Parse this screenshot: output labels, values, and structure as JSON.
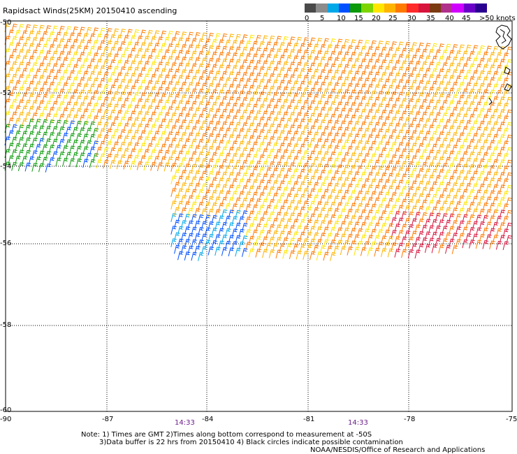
{
  "title": "Rapidsact Winds(25KM) 20150410 ascending",
  "colorbar": {
    "units": ">50 knots",
    "labels": [
      "0",
      "5",
      "10",
      "15",
      "20",
      "25",
      "30",
      "35",
      "40",
      "45"
    ],
    "colors": [
      "#4a4a4a",
      "#8c8c8c",
      "#00a8e8",
      "#0050ff",
      "#0a9a0a",
      "#7cd400",
      "#ffe600",
      "#ffb400",
      "#ff7a00",
      "#ff2a2a",
      "#d7143c",
      "#7b3a10",
      "#b0308c",
      "#d000ff",
      "#6a00c8",
      "#2a0090"
    ]
  },
  "map": {
    "lat_labels": [
      "-50",
      "-52",
      "-54",
      "-56",
      "-58",
      "-60"
    ],
    "lon_labels": [
      "-90",
      "-87",
      "-84",
      "-81",
      "-78",
      "-75"
    ],
    "time_labels": [
      "14:33",
      "14:33"
    ]
  },
  "notes": [
    "Note: 1) Times are GMT 2)Times along bottom correspond to measurement at -50S",
    "3)Data buffer is 22 hrs from 20150410 4) Black circles indicate possible contamination",
    "NOAA/NESDIS/Office of Research and Applications"
  ]
}
